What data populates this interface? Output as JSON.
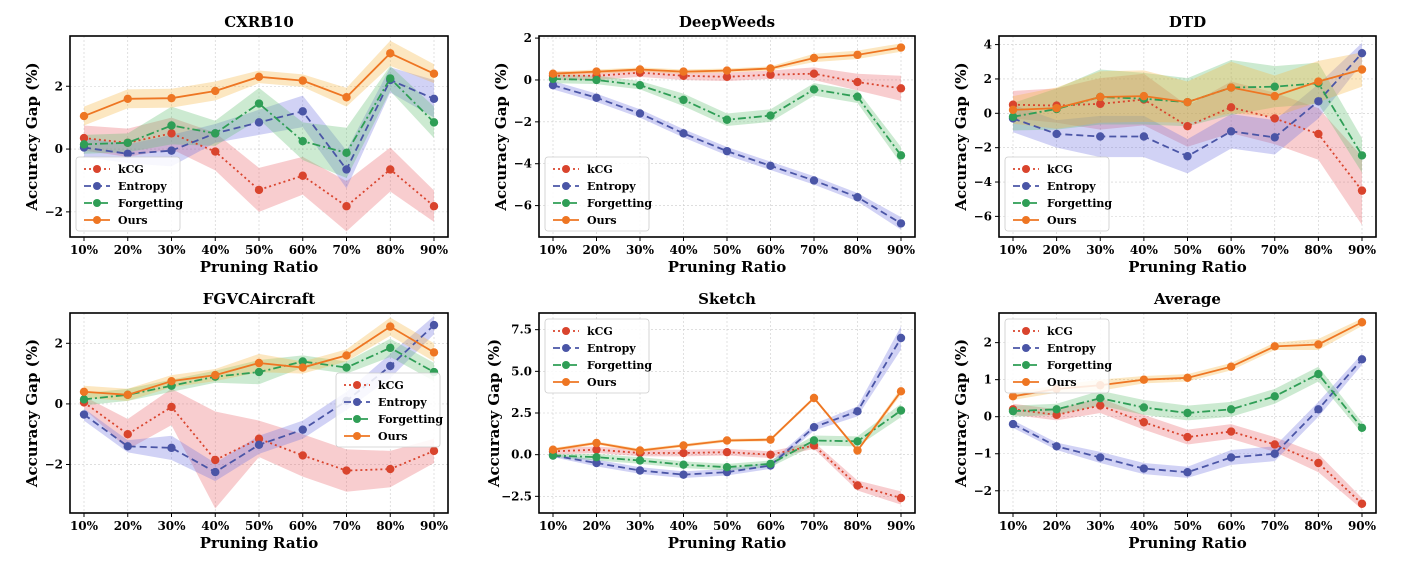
{
  "chart_data": [
    {
      "type": "line",
      "title": "CXRB10",
      "xlabel": "Pruning Ratio",
      "ylabel": "Accuracy Gap (%)",
      "categories": [
        "10%",
        "20%",
        "30%",
        "40%",
        "50%",
        "60%",
        "70%",
        "80%",
        "90%"
      ],
      "ylim": [
        -2.8,
        3.6
      ],
      "yticks": [
        -2,
        0,
        2
      ],
      "grid": true,
      "legend": "bottom-left",
      "series": [
        {
          "name": "kCG",
          "values": [
            0.35,
            0.2,
            0.5,
            -0.08,
            -1.3,
            -0.85,
            -1.82,
            -0.65,
            -1.82
          ],
          "band": [
            0.4,
            0.45,
            0.5,
            0.6,
            0.7,
            0.6,
            0.8,
            0.7,
            0.5
          ]
        },
        {
          "name": "Entropy",
          "values": [
            0.05,
            -0.15,
            -0.05,
            0.5,
            0.85,
            1.2,
            -0.65,
            2.2,
            1.6
          ],
          "band": [
            0.3,
            0.3,
            0.5,
            0.3,
            0.4,
            0.5,
            0.6,
            0.4,
            0.6
          ]
        },
        {
          "name": "Forgetting",
          "values": [
            0.15,
            0.2,
            0.75,
            0.5,
            1.45,
            0.25,
            -0.12,
            2.25,
            0.85
          ],
          "band": [
            0.3,
            0.3,
            0.6,
            0.4,
            0.5,
            0.6,
            0.8,
            0.4,
            0.5
          ]
        },
        {
          "name": "Ours",
          "values": [
            1.05,
            1.6,
            1.62,
            1.85,
            2.3,
            2.18,
            1.65,
            3.05,
            2.4
          ],
          "band": [
            0.3,
            0.3,
            0.3,
            0.3,
            0.2,
            0.2,
            0.3,
            0.4,
            0.3
          ]
        }
      ]
    },
    {
      "type": "line",
      "title": "DeepWeeds",
      "xlabel": "Pruning Ratio",
      "ylabel": "Accuracy Gap (%)",
      "categories": [
        "10%",
        "20%",
        "30%",
        "40%",
        "50%",
        "60%",
        "70%",
        "80%",
        "90%"
      ],
      "ylim": [
        -7.5,
        2.1
      ],
      "yticks": [
        -6,
        -4,
        -2,
        0,
        2
      ],
      "grid": true,
      "legend": "bottom-left",
      "series": [
        {
          "name": "kCG",
          "values": [
            0.2,
            0.2,
            0.35,
            0.2,
            0.15,
            0.25,
            0.3,
            -0.1,
            -0.4
          ],
          "band": [
            0.2,
            0.2,
            0.2,
            0.2,
            0.2,
            0.2,
            0.3,
            0.4,
            0.6
          ]
        },
        {
          "name": "Entropy",
          "values": [
            -0.25,
            -0.85,
            -1.6,
            -2.55,
            -3.4,
            -4.1,
            -4.8,
            -5.6,
            -6.85
          ],
          "band": [
            0.2,
            0.2,
            0.2,
            0.2,
            0.2,
            0.2,
            0.2,
            0.2,
            0.3
          ]
        },
        {
          "name": "Forgetting",
          "values": [
            0.05,
            0.0,
            -0.25,
            -0.95,
            -1.9,
            -1.7,
            -0.45,
            -0.8,
            -3.6
          ],
          "band": [
            0.2,
            0.2,
            0.2,
            0.3,
            0.3,
            0.3,
            0.3,
            0.3,
            0.4
          ]
        },
        {
          "name": "Ours",
          "values": [
            0.3,
            0.4,
            0.5,
            0.4,
            0.45,
            0.55,
            1.05,
            1.2,
            1.55
          ],
          "band": [
            0.1,
            0.1,
            0.1,
            0.1,
            0.1,
            0.1,
            0.2,
            0.2,
            0.2
          ]
        }
      ]
    },
    {
      "type": "line",
      "title": "DTD",
      "xlabel": "Pruning Ratio",
      "ylabel": "Accuracy Gap (%)",
      "categories": [
        "10%",
        "20%",
        "30%",
        "40%",
        "50%",
        "60%",
        "70%",
        "80%",
        "90%"
      ],
      "ylim": [
        -7.2,
        4.5
      ],
      "yticks": [
        -6,
        -4,
        -2,
        0,
        2,
        4
      ],
      "grid": true,
      "legend": "bottom-left",
      "series": [
        {
          "name": "kCG",
          "values": [
            0.5,
            0.45,
            0.55,
            0.8,
            -0.75,
            0.35,
            -0.3,
            -1.2,
            -4.5
          ],
          "band": [
            0.8,
            1.0,
            1.5,
            1.5,
            1.2,
            1.5,
            1.5,
            1.5,
            2.0
          ]
        },
        {
          "name": "Entropy",
          "values": [
            -0.3,
            -1.2,
            -1.35,
            -1.35,
            -2.5,
            -1.05,
            -1.4,
            0.7,
            3.5
          ],
          "band": [
            0.8,
            0.8,
            1.2,
            1.2,
            1.0,
            1.0,
            1.0,
            1.0,
            0.6
          ]
        },
        {
          "name": "Forgetting",
          "values": [
            -0.2,
            0.25,
            0.95,
            0.85,
            0.65,
            1.5,
            1.55,
            1.75,
            -2.45
          ],
          "band": [
            0.8,
            1.2,
            1.6,
            1.5,
            1.4,
            1.6,
            1.2,
            1.2,
            1.0
          ]
        },
        {
          "name": "Ours",
          "values": [
            0.2,
            0.3,
            0.95,
            1.0,
            0.65,
            1.5,
            1.0,
            1.85,
            2.55
          ],
          "band": [
            0.8,
            1.2,
            1.5,
            1.5,
            1.2,
            1.5,
            1.2,
            1.2,
            1.0
          ]
        }
      ]
    },
    {
      "type": "line",
      "title": "FGVCAircraft",
      "xlabel": "Pruning Ratio",
      "ylabel": "Accuracy Gap (%)",
      "categories": [
        "10%",
        "20%",
        "30%",
        "40%",
        "50%",
        "60%",
        "70%",
        "80%",
        "90%"
      ],
      "ylim": [
        -3.6,
        3.0
      ],
      "yticks": [
        -2,
        0,
        2
      ],
      "grid": true,
      "legend": "bottom-right",
      "series": [
        {
          "name": "kCG",
          "values": [
            0.05,
            -1.0,
            -0.1,
            -1.85,
            -1.15,
            -1.7,
            -2.2,
            -2.15,
            -1.55
          ],
          "band": [
            0.2,
            0.5,
            0.6,
            1.6,
            0.6,
            0.7,
            0.7,
            0.6,
            0.4
          ]
        },
        {
          "name": "Entropy",
          "values": [
            -0.35,
            -1.4,
            -1.45,
            -2.25,
            -1.35,
            -0.85,
            0.1,
            1.25,
            2.6
          ],
          "band": [
            0.2,
            0.2,
            0.4,
            0.3,
            0.3,
            0.3,
            0.3,
            0.4,
            0.3
          ]
        },
        {
          "name": "Forgetting",
          "values": [
            0.15,
            0.3,
            0.6,
            0.9,
            1.05,
            1.4,
            1.2,
            1.85,
            1.05
          ],
          "band": [
            0.2,
            0.2,
            0.2,
            0.2,
            0.4,
            0.2,
            0.2,
            0.3,
            0.3
          ]
        },
        {
          "name": "Ours",
          "values": [
            0.4,
            0.3,
            0.75,
            0.95,
            1.35,
            1.2,
            1.6,
            2.55,
            1.7
          ],
          "band": [
            0.2,
            0.2,
            0.2,
            0.2,
            0.3,
            0.2,
            0.2,
            0.3,
            0.3
          ]
        }
      ]
    },
    {
      "type": "line",
      "title": "Sketch",
      "xlabel": "Pruning Ratio",
      "ylabel": "Accuracy Gap (%)",
      "categories": [
        "10%",
        "20%",
        "30%",
        "40%",
        "50%",
        "60%",
        "70%",
        "80%",
        "90%"
      ],
      "ylim": [
        -3.5,
        8.5
      ],
      "yticks": [
        -2.5,
        0.0,
        2.5,
        5.0,
        7.5
      ],
      "ytick_labels": [
        "−2.5",
        "0.0",
        "2.5",
        "5.0",
        "7.5"
      ],
      "grid": true,
      "legend": "top-left",
      "series": [
        {
          "name": "kCG",
          "values": [
            0.2,
            0.3,
            0.1,
            0.1,
            0.15,
            0.0,
            0.55,
            -1.85,
            -2.6
          ],
          "band": [
            0.2,
            0.2,
            0.2,
            0.2,
            0.2,
            0.2,
            0.2,
            0.3,
            0.4
          ]
        },
        {
          "name": "Entropy",
          "values": [
            -0.05,
            -0.5,
            -0.95,
            -1.2,
            -1.05,
            -0.65,
            1.65,
            2.6,
            7.0
          ],
          "band": [
            0.1,
            0.2,
            0.2,
            0.2,
            0.2,
            0.2,
            0.2,
            0.3,
            0.7
          ]
        },
        {
          "name": "Forgetting",
          "values": [
            -0.05,
            -0.15,
            -0.35,
            -0.6,
            -0.75,
            -0.55,
            0.85,
            0.8,
            2.65
          ],
          "band": [
            0.1,
            0.2,
            0.2,
            0.2,
            0.2,
            0.2,
            0.3,
            0.3,
            0.4
          ]
        },
        {
          "name": "Ours",
          "values": [
            0.3,
            0.7,
            0.25,
            0.55,
            0.85,
            0.9,
            3.4,
            0.25,
            3.8
          ],
          "band": [
            0.1,
            0.1,
            0.1,
            0.1,
            0.1,
            0.1,
            0.1,
            0.1,
            0.2
          ]
        }
      ]
    },
    {
      "type": "line",
      "title": "Average",
      "xlabel": "Pruning Ratio",
      "ylabel": "Accuracy Gap (%)",
      "categories": [
        "10%",
        "20%",
        "30%",
        "40%",
        "50%",
        "60%",
        "70%",
        "80%",
        "90%"
      ],
      "ylim": [
        -2.6,
        2.8
      ],
      "yticks": [
        -2,
        -1,
        0,
        1,
        2
      ],
      "grid": true,
      "legend": "top-left",
      "series": [
        {
          "name": "kCG",
          "values": [
            0.2,
            0.05,
            0.3,
            -0.15,
            -0.55,
            -0.4,
            -0.75,
            -1.25,
            -2.35
          ],
          "band": [
            0.15,
            0.15,
            0.2,
            0.2,
            0.2,
            0.2,
            0.2,
            0.25,
            0.15
          ]
        },
        {
          "name": "Entropy",
          "values": [
            -0.2,
            -0.8,
            -1.1,
            -1.4,
            -1.5,
            -1.1,
            -1.0,
            0.2,
            1.55
          ],
          "band": [
            0.1,
            0.1,
            0.15,
            0.15,
            0.15,
            0.2,
            0.2,
            0.2,
            0.15
          ]
        },
        {
          "name": "Forgetting",
          "values": [
            0.15,
            0.2,
            0.5,
            0.25,
            0.1,
            0.2,
            0.55,
            1.15,
            -0.3
          ],
          "band": [
            0.15,
            0.15,
            0.2,
            0.2,
            0.2,
            0.2,
            0.2,
            0.2,
            0.15
          ]
        },
        {
          "name": "Ours",
          "values": [
            0.55,
            0.75,
            0.85,
            1.0,
            1.05,
            1.35,
            1.9,
            1.95,
            2.55
          ],
          "band": [
            0.1,
            0.1,
            0.15,
            0.1,
            0.1,
            0.1,
            0.1,
            0.15,
            0.1
          ]
        }
      ]
    }
  ],
  "colors": {
    "kCG": "#d9442d",
    "Entropy": "#4a55a6",
    "Forgetting": "#2f9e56",
    "Ours": "#ee7623"
  },
  "dash": {
    "kCG": "dotted",
    "Entropy": "dashed",
    "Forgetting": "dashdot",
    "Ours": "solid"
  }
}
